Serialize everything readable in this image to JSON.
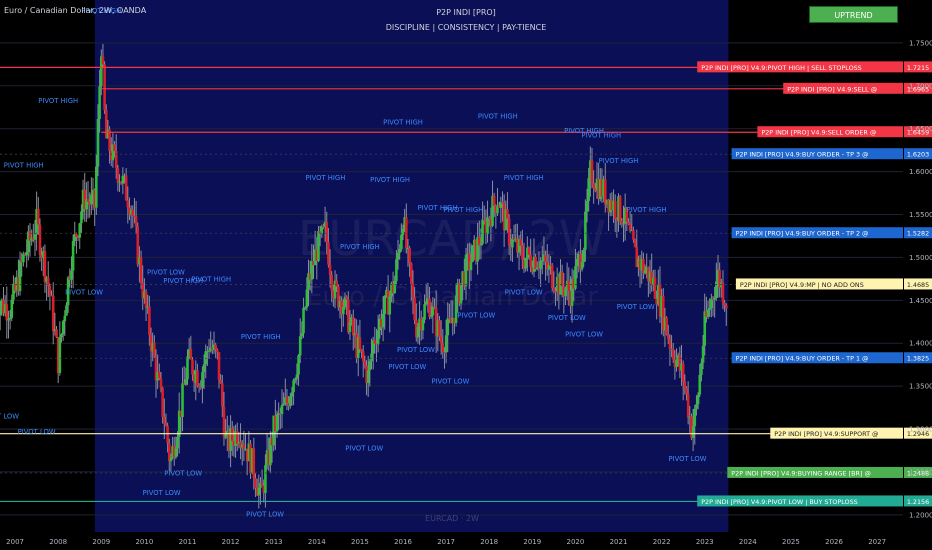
{
  "header": {
    "symbol": "Euro / Canadian Dollar, 2W, OANDA",
    "indicator_name": "P2P INDI [PRO]",
    "tagline": "DISCIPLINE  |  CONSISTENCY  |  PAY-TIENCE",
    "trend_label": "UPTREND",
    "watermark_ticker": "EURCAD, 2W",
    "watermark_name": "Euro / Canadian Dollar",
    "footer_ticker": "EURCAD · 2W"
  },
  "colors": {
    "up": "#2ebd3a",
    "down": "#d8202a",
    "trend_button": "#4caf50",
    "shade": "#0b0f55",
    "pivot_text": "#3d8bff"
  },
  "chart_data": {
    "type": "candlestick",
    "ylim": [
      1.18,
      1.8
    ],
    "xlim": [
      2006.65,
      2027.6
    ],
    "y_ticks": [
      1.75,
      1.7,
      1.65,
      1.6,
      1.55,
      1.5,
      1.45,
      1.4,
      1.35,
      1.3,
      1.25,
      1.2
    ],
    "y_tick_labels": [
      "1.7500",
      "1.7000",
      "1.6500",
      "1.6000",
      "1.5500",
      "1.5000",
      "1.4500",
      "1.4000",
      "1.3500",
      "1.3000",
      "1.2500",
      "1.2000"
    ],
    "x_ticks": [
      2007,
      2008,
      2009,
      2010,
      2011,
      2012,
      2013,
      2014,
      2015,
      2016,
      2017,
      2018,
      2019,
      2020,
      2021,
      2022,
      2023,
      2024,
      2025,
      2026,
      2027
    ],
    "x_tick_labels": [
      "2007",
      "2008",
      "2009",
      "2010",
      "2011",
      "2012",
      "2013",
      "2014",
      "2015",
      "2016",
      "2017",
      "2018",
      "2019",
      "2020",
      "2021",
      "2022",
      "2023",
      "2024",
      "2025",
      "2026",
      "2027"
    ],
    "shaded_range": [
      2008.85,
      2023.55
    ],
    "price_anchors": [
      [
        2006.5,
        1.45
      ],
      [
        2006.9,
        1.44
      ],
      [
        2007.2,
        1.5
      ],
      [
        2007.5,
        1.54
      ],
      [
        2007.8,
        1.46
      ],
      [
        2008.0,
        1.38
      ],
      [
        2008.3,
        1.5
      ],
      [
        2008.6,
        1.57
      ],
      [
        2008.85,
        1.56
      ],
      [
        2009.0,
        1.75
      ],
      [
        2009.1,
        1.64
      ],
      [
        2009.4,
        1.6
      ],
      [
        2009.7,
        1.56
      ],
      [
        2010.0,
        1.45
      ],
      [
        2010.3,
        1.36
      ],
      [
        2010.5,
        1.3
      ],
      [
        2010.6,
        1.26
      ],
      [
        2010.9,
        1.34
      ],
      [
        2011.0,
        1.38
      ],
      [
        2011.3,
        1.36
      ],
      [
        2011.5,
        1.4
      ],
      [
        2011.7,
        1.38
      ],
      [
        2011.9,
        1.28
      ],
      [
        2012.2,
        1.3
      ],
      [
        2012.5,
        1.26
      ],
      [
        2012.7,
        1.22
      ],
      [
        2013.0,
        1.3
      ],
      [
        2013.3,
        1.33
      ],
      [
        2013.6,
        1.39
      ],
      [
        2013.8,
        1.47
      ],
      [
        2014.0,
        1.51
      ],
      [
        2014.2,
        1.53
      ],
      [
        2014.4,
        1.46
      ],
      [
        2014.6,
        1.45
      ],
      [
        2014.9,
        1.4
      ],
      [
        2015.2,
        1.36
      ],
      [
        2015.3,
        1.4
      ],
      [
        2015.5,
        1.43
      ],
      [
        2015.8,
        1.47
      ],
      [
        2016.0,
        1.55
      ],
      [
        2016.1,
        1.5
      ],
      [
        2016.3,
        1.42
      ],
      [
        2016.6,
        1.45
      ],
      [
        2016.9,
        1.4
      ],
      [
        2017.1,
        1.42
      ],
      [
        2017.4,
        1.48
      ],
      [
        2017.7,
        1.51
      ],
      [
        2018.0,
        1.55
      ],
      [
        2018.2,
        1.57
      ],
      [
        2018.5,
        1.52
      ],
      [
        2018.8,
        1.5
      ],
      [
        2019.1,
        1.5
      ],
      [
        2019.3,
        1.49
      ],
      [
        2019.6,
        1.47
      ],
      [
        2019.9,
        1.46
      ],
      [
        2020.2,
        1.52
      ],
      [
        2020.35,
        1.6
      ],
      [
        2020.6,
        1.58
      ],
      [
        2020.9,
        1.56
      ],
      [
        2021.1,
        1.55
      ],
      [
        2021.4,
        1.5
      ],
      [
        2021.7,
        1.48
      ],
      [
        2021.9,
        1.46
      ],
      [
        2022.2,
        1.4
      ],
      [
        2022.5,
        1.36
      ],
      [
        2022.7,
        1.3
      ],
      [
        2022.8,
        1.32
      ],
      [
        2023.0,
        1.42
      ],
      [
        2023.3,
        1.48
      ],
      [
        2023.5,
        1.45
      ]
    ],
    "levels": [
      {
        "label": "P2P INDI [PRO] V4.9:PIVOT HIGH | SELL STOPLOSS",
        "value": 1.7215,
        "price_label": "1.7215",
        "color": "#f23645",
        "line_start": 2006.6
      },
      {
        "label": "P2P INDI [PRO] V4.9:SELL @",
        "value": 1.6965,
        "price_label": "1.6965",
        "color": "#f23645",
        "line_start": 2009.0
      },
      {
        "label": "P2P INDI [PRO] V4.9:SELL ORDER @",
        "value": 1.6459,
        "price_label": "1.6459",
        "color": "#f23645",
        "line_start": 2009.0
      },
      {
        "label": "P2P INDI [PRO] V4.9:BUY ORDER - TP 3 @",
        "value": 1.6203,
        "price_label": "1.6203",
        "color": "#1e66d0",
        "line_start": null
      },
      {
        "label": "P2P INDI [PRO] V4.9:BUY ORDER - TP 2 @",
        "value": 1.5282,
        "price_label": "1.5282",
        "color": "#1e66d0",
        "line_start": null
      },
      {
        "label": "P2P INDI [PRO] V4.9:MP  |  NO ADD ONS",
        "value": 1.4685,
        "price_label": "1.4685",
        "color": "#fff3b0",
        "line_start": null
      },
      {
        "label": "P2P INDI [PRO] V4.9:BUY ORDER - TP 1 @",
        "value": 1.3825,
        "price_label": "1.3825",
        "color": "#1e66d0",
        "line_start": null
      },
      {
        "label": "P2P INDI [PRO] V4.9:SUPPORT @",
        "value": 1.2946,
        "price_label": "1.2946",
        "color": "#fff3b0",
        "line_start": 2006.6
      },
      {
        "label": "P2P INDI [PRO] V4.9:BUYING RANGE [BR] @",
        "value": 1.2488,
        "price_label": "1.2488",
        "color": "#4caf50",
        "line_start": null
      },
      {
        "label": "P2P INDI [PRO] V4.9:PIVOT LOW  |  BUY STOPLOSS",
        "value": 1.2156,
        "price_label": "1.2156",
        "color": "#22ab94",
        "line_start": 2006.6
      }
    ],
    "annotations": [
      {
        "text": "PIVOT HIGH",
        "x": 2009.0,
        "y": 1.785
      },
      {
        "text": "PIVOT HIGH",
        "x": 2008.0,
        "y": 1.68
      },
      {
        "text": "PIVOT HIGH",
        "x": 2007.2,
        "y": 1.605
      },
      {
        "text": "PIVOT LOW",
        "x": 2010.5,
        "y": 1.48
      },
      {
        "text": "PIVOT HIGH",
        "x": 2010.9,
        "y": 1.47
      },
      {
        "text": "PIVOT HIGH",
        "x": 2011.55,
        "y": 1.472
      },
      {
        "text": "PIVOT LOW",
        "x": 2008.6,
        "y": 1.457
      },
      {
        "text": "PIVOT HIGH",
        "x": 2012.7,
        "y": 1.405
      },
      {
        "text": "PIVOT LOW",
        "x": 2006.65,
        "y": 1.312
      },
      {
        "text": "PIVOT LOW",
        "x": 2007.5,
        "y": 1.294
      },
      {
        "text": "PIVOT LOW",
        "x": 2010.9,
        "y": 1.246
      },
      {
        "text": "PIVOT LOW",
        "x": 2012.8,
        "y": 1.198
      },
      {
        "text": "PIVOT LOW",
        "x": 2010.4,
        "y": 1.223
      },
      {
        "text": "PIVOT HIGH",
        "x": 2014.2,
        "y": 1.59
      },
      {
        "text": "PIVOT HIGH",
        "x": 2015.0,
        "y": 1.51
      },
      {
        "text": "PIVOT HIGH",
        "x": 2015.7,
        "y": 1.588
      },
      {
        "text": "PIVOT HIGH",
        "x": 2016.0,
        "y": 1.655
      },
      {
        "text": "PIVOT HIGH",
        "x": 2016.8,
        "y": 1.555
      },
      {
        "text": "PIVOT HIGH",
        "x": 2017.4,
        "y": 1.553
      },
      {
        "text": "PIVOT HIGH",
        "x": 2018.2,
        "y": 1.662
      },
      {
        "text": "PIVOT HIGH",
        "x": 2018.8,
        "y": 1.59
      },
      {
        "text": "PIVOT HIGH",
        "x": 2020.2,
        "y": 1.645
      },
      {
        "text": "PIVOT HIGH",
        "x": 2020.6,
        "y": 1.64
      },
      {
        "text": "PIVOT HIGH",
        "x": 2021.0,
        "y": 1.61
      },
      {
        "text": "PIVOT HIGH",
        "x": 2021.65,
        "y": 1.553
      },
      {
        "text": "PIVOT LOW",
        "x": 2015.1,
        "y": 1.275
      },
      {
        "text": "PIVOT LOW",
        "x": 2016.3,
        "y": 1.39
      },
      {
        "text": "PIVOT LOW",
        "x": 2016.1,
        "y": 1.37
      },
      {
        "text": "PIVOT LOW",
        "x": 2017.1,
        "y": 1.353
      },
      {
        "text": "PIVOT LOW",
        "x": 2017.7,
        "y": 1.43
      },
      {
        "text": "PIVOT LOW",
        "x": 2018.8,
        "y": 1.457
      },
      {
        "text": "PIVOT LOW",
        "x": 2019.8,
        "y": 1.427
      },
      {
        "text": "PIVOT LOW",
        "x": 2020.2,
        "y": 1.408
      },
      {
        "text": "PIVOT LOW",
        "x": 2021.4,
        "y": 1.44
      },
      {
        "text": "PIVOT LOW",
        "x": 2022.6,
        "y": 1.263
      }
    ]
  }
}
